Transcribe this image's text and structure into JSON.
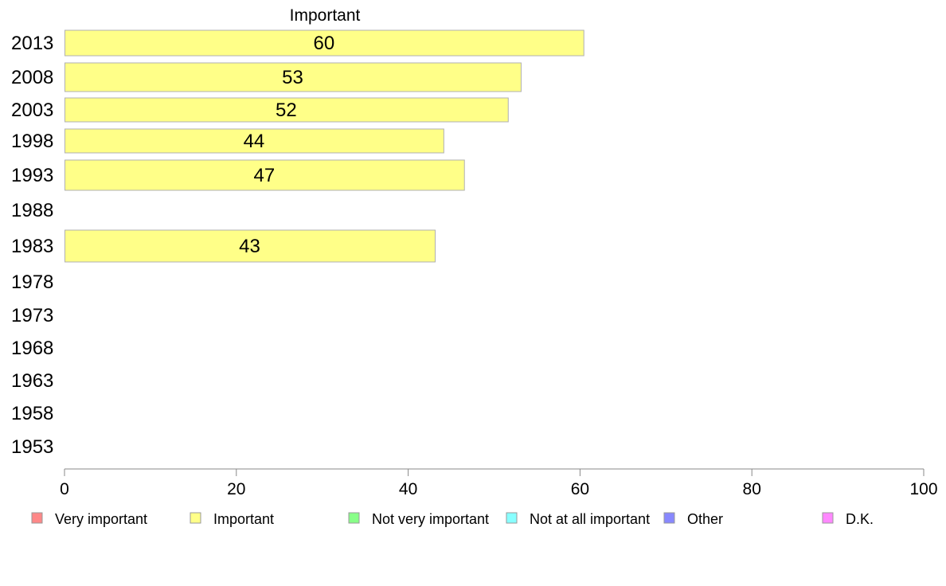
{
  "chart_data": {
    "type": "bar",
    "orientation": "horizontal",
    "title": "Important",
    "categories": [
      "2013",
      "2008",
      "2003",
      "1998",
      "1993",
      "1988",
      "1983",
      "1978",
      "1973",
      "1968",
      "1963",
      "1958",
      "1953"
    ],
    "series": [
      {
        "name": "Important",
        "color": "#ffff88",
        "values": [
          60.4,
          53.1,
          51.6,
          44.1,
          46.5,
          null,
          43.1,
          null,
          null,
          null,
          null,
          null,
          null
        ],
        "labels": [
          "60",
          "53",
          "52",
          "44",
          "47",
          "",
          "43",
          "",
          "",
          "",
          "",
          "",
          ""
        ]
      }
    ],
    "xlim": [
      0,
      100
    ],
    "xticks": [
      0,
      20,
      40,
      60,
      80,
      100
    ],
    "legend": {
      "placement": "bottom",
      "items": [
        {
          "label": "Very important",
          "color": "#ff8888"
        },
        {
          "label": "Important",
          "color": "#ffff88"
        },
        {
          "label": "Not very important",
          "color": "#88ff88"
        },
        {
          "label": "Not at all important",
          "color": "#88ffff"
        },
        {
          "label": "Other",
          "color": "#8888ff"
        },
        {
          "label": "D.K.",
          "color": "#ff88ff"
        }
      ]
    }
  }
}
